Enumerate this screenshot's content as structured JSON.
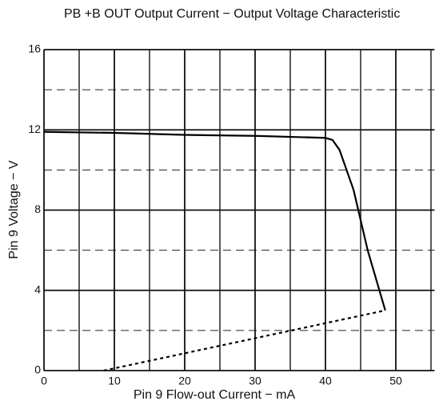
{
  "chart_data": {
    "type": "line",
    "title": "PB +B OUT Output Current − Output Voltage Characteristic",
    "x_label": "Pin 9 Flow-out Current − mA",
    "y_label": "Pin 9 Voltage − V",
    "xlim": [
      0,
      55.5
    ],
    "ylim": [
      0,
      16
    ],
    "xticks": [
      0,
      10,
      20,
      30,
      40,
      50
    ],
    "yticks": [
      0,
      4,
      8,
      12,
      16
    ],
    "x_minor_grid": [
      5,
      15,
      25,
      35,
      45,
      55
    ],
    "y_minor_grid": [
      2,
      6,
      10,
      14
    ],
    "grid": true,
    "series": [
      {
        "color": "#000000",
        "dashed": false,
        "x": [
          0,
          10,
          20,
          30,
          40,
          41,
          42,
          44,
          46,
          48.5
        ],
        "values": [
          11.9,
          11.85,
          11.75,
          11.7,
          11.6,
          11.5,
          11,
          9,
          6,
          3
        ]
      },
      {
        "color": "#000000",
        "dashed": true,
        "x": [
          8.5,
          48.5
        ],
        "values": [
          0,
          3
        ]
      }
    ]
  }
}
